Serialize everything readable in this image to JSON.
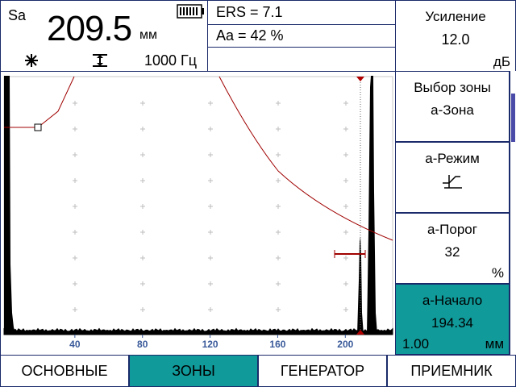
{
  "header": {
    "mode": "Sa",
    "reading": "209.5",
    "reading_unit": "мм",
    "frequency": "1000 Гц",
    "ers": "ERS = 7.1",
    "amplitude": "Aa = 42 %"
  },
  "gain": {
    "label": "Усиление",
    "value": "12.0",
    "unit": "дБ"
  },
  "scan": {
    "xlim": [
      0,
      228
    ],
    "xticks": [
      40,
      80,
      120,
      160,
      200
    ]
  },
  "side_menu": [
    {
      "label": "Выбор зоны",
      "value": "а-Зона"
    },
    {
      "label": "а-Режим"
    },
    {
      "label": "а-Порог",
      "value": "32",
      "unit": "%"
    },
    {
      "label": "а-Начало",
      "value": "194.34",
      "step": "1.00",
      "unit": "мм"
    }
  ],
  "tabs": [
    "ОСНОВНЫЕ",
    "ЗОНЫ",
    "ГЕНЕРАТОР",
    "ПРИЕМНИК"
  ],
  "active_tab": 1
}
